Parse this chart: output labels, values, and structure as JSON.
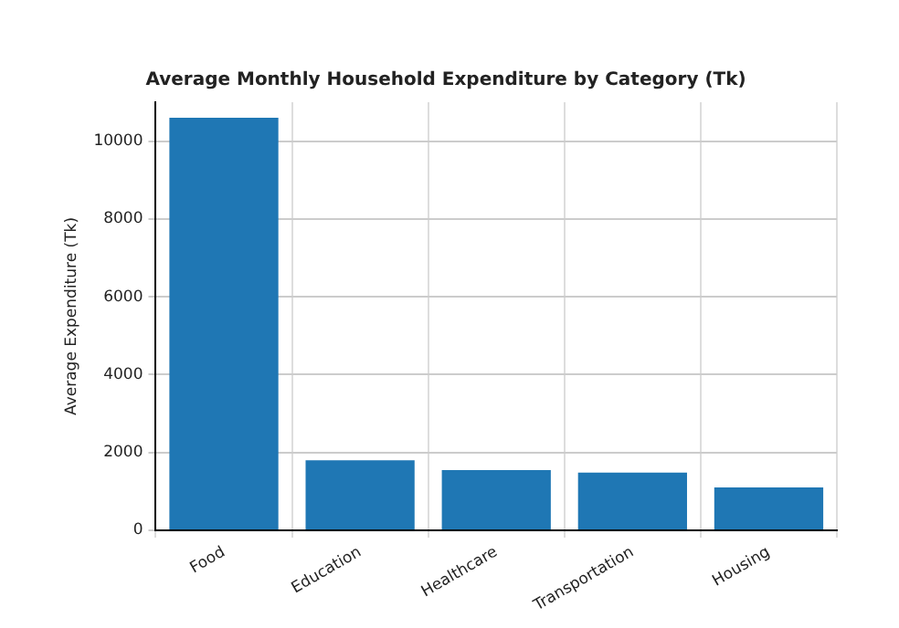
{
  "chart_data": {
    "type": "bar",
    "title": "Average Monthly Household Expenditure by Category (Tk)",
    "ylabel": "Average Expenditure (Tk)",
    "categories": [
      "Food",
      "Education",
      "Healthcare",
      "Transportation",
      "Housing"
    ],
    "values": [
      10600,
      1800,
      1550,
      1480,
      1100
    ],
    "color": "#1f77b4",
    "ylim": [
      0,
      11000
    ],
    "yticks": [
      0,
      2000,
      4000,
      6000,
      8000,
      10000
    ],
    "grid": true
  }
}
